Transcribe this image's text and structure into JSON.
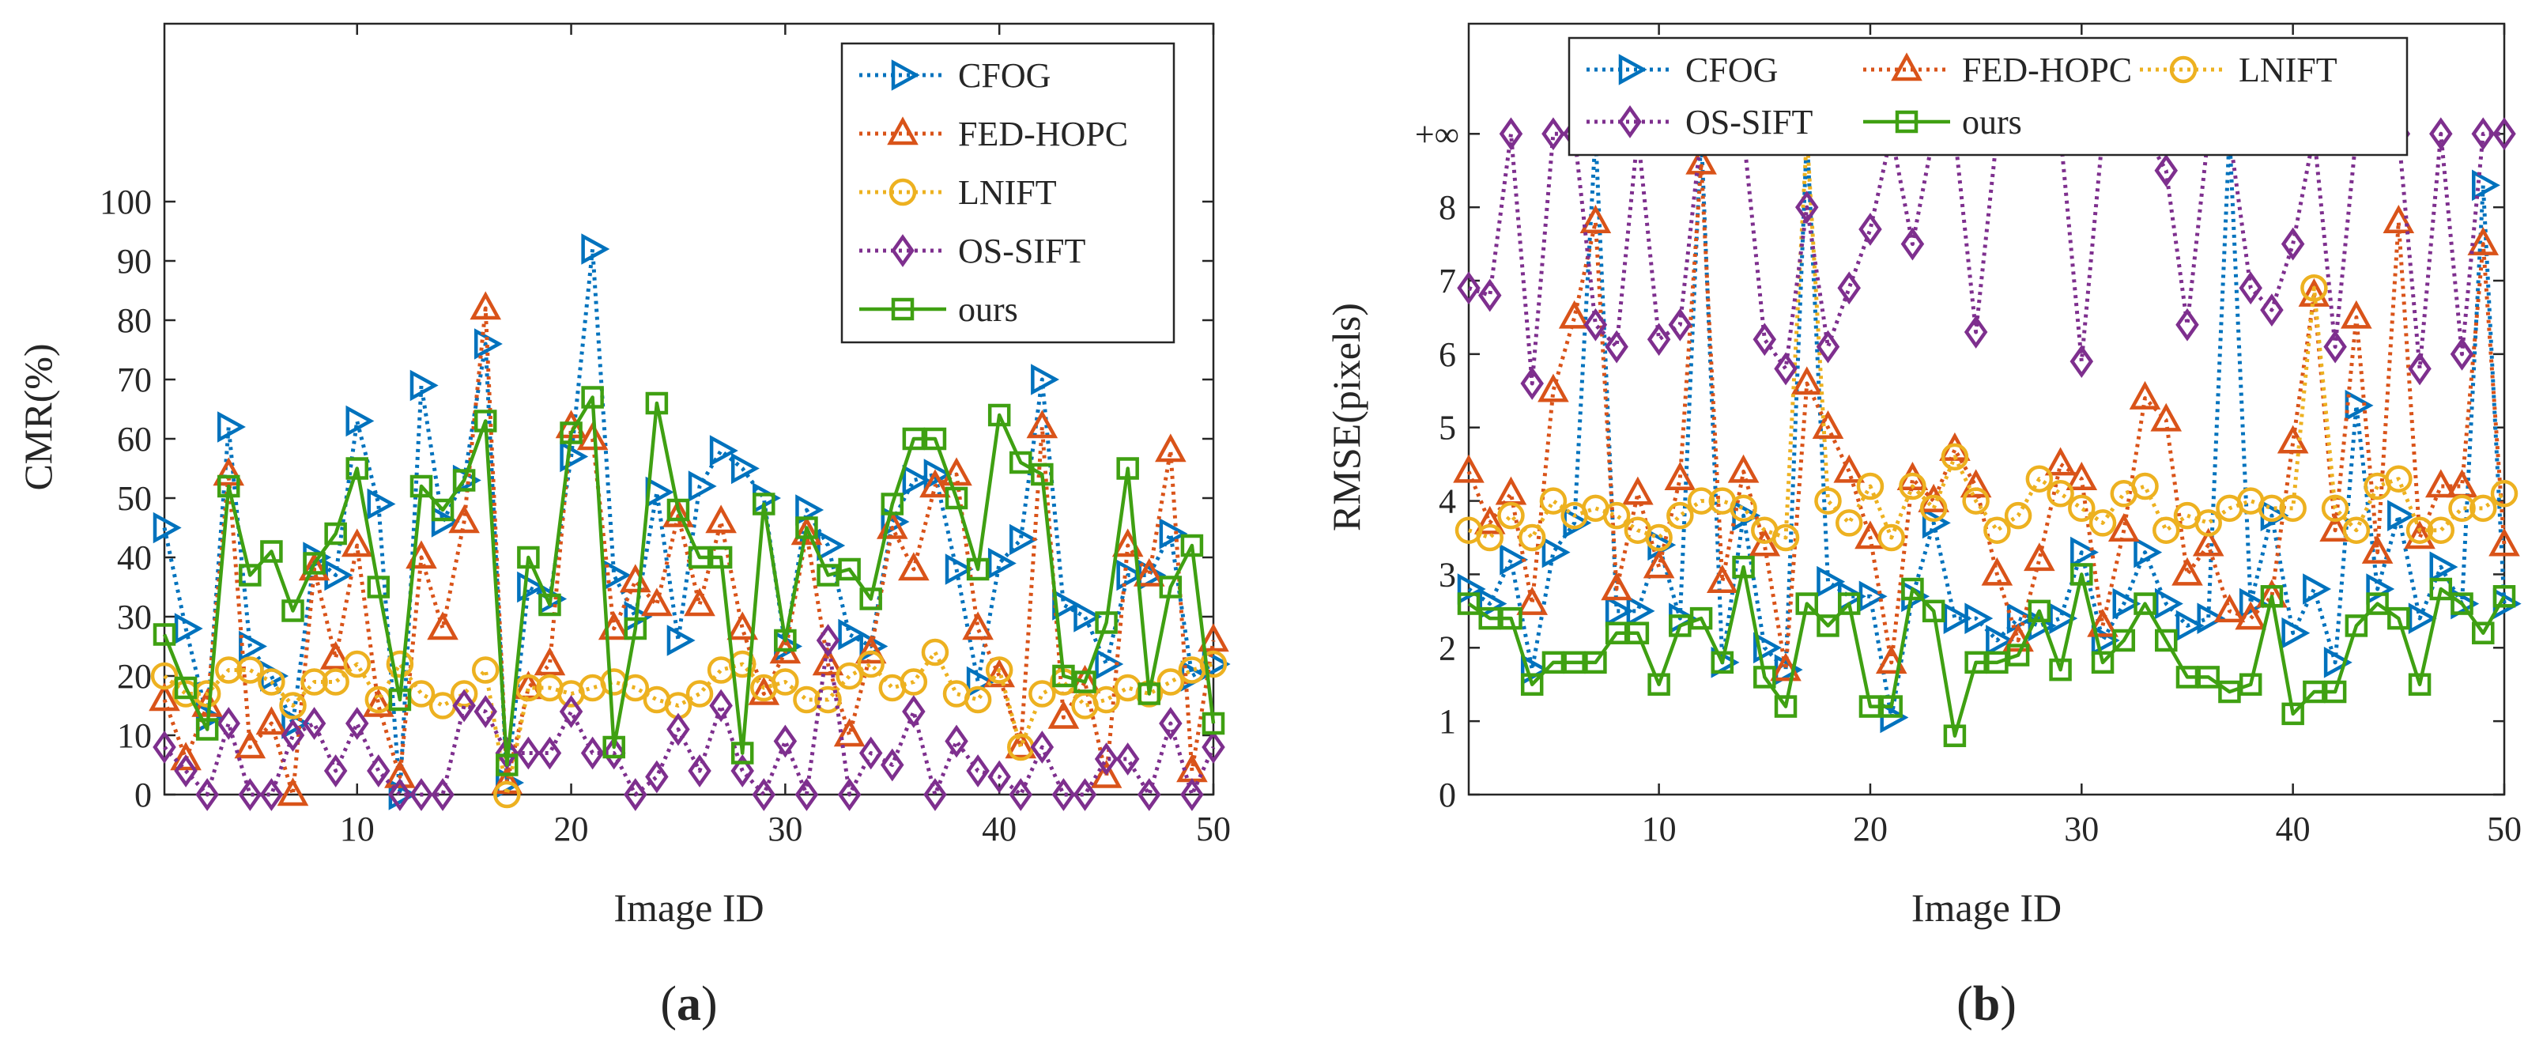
{
  "colors": {
    "CFOG": "#0072BD",
    "FED-HOPC": "#D95319",
    "LNIFT": "#EDB120",
    "OS-SIFT": "#7E2F8E",
    "ours": "#3FA012"
  },
  "chart_data": [
    {
      "id": "a",
      "type": "line",
      "panel_label": [
        "(",
        "a",
        ")"
      ],
      "xlabel": "Image ID",
      "ylabel": "CMR(%)",
      "xlim": [
        1,
        50
      ],
      "ylim": [
        0,
        130
      ],
      "xticks": [
        10,
        20,
        30,
        40,
        50
      ],
      "yticks": [
        0,
        10,
        20,
        30,
        40,
        50,
        60,
        70,
        80,
        90,
        100
      ],
      "legend_position": "top-right",
      "legend_layout": "column",
      "x": [
        1,
        2,
        3,
        4,
        5,
        6,
        7,
        8,
        9,
        10,
        11,
        12,
        13,
        14,
        15,
        16,
        17,
        18,
        19,
        20,
        21,
        22,
        23,
        24,
        25,
        26,
        27,
        28,
        29,
        30,
        31,
        32,
        33,
        34,
        35,
        36,
        37,
        38,
        39,
        40,
        41,
        42,
        43,
        44,
        45,
        46,
        47,
        48,
        49,
        50
      ],
      "series": [
        {
          "name": "CFOG",
          "marker": "triangle-right",
          "style": "dotted",
          "values": [
            45,
            28,
            13,
            62,
            25,
            20,
            12,
            40,
            37,
            63,
            49,
            0,
            69,
            46,
            53,
            76,
            2,
            35,
            33,
            57,
            92,
            37,
            30,
            51,
            26,
            52,
            58,
            55,
            50,
            25,
            48,
            42,
            27,
            25,
            46,
            53,
            54,
            38,
            19,
            39,
            43,
            70,
            32,
            30,
            22,
            37,
            37,
            44,
            20,
            22
          ]
        },
        {
          "name": "FED-HOPC",
          "marker": "triangle-up",
          "style": "dotted",
          "values": [
            16,
            6,
            15,
            54,
            8,
            12,
            0,
            38,
            23,
            42,
            15,
            3,
            40,
            28,
            46,
            82,
            2,
            18,
            22,
            62,
            60,
            28,
            36,
            32,
            47,
            32,
            46,
            28,
            17,
            24,
            44,
            22,
            10,
            24,
            45,
            38,
            52,
            54,
            28,
            20,
            8,
            62,
            13,
            19,
            3,
            42,
            37,
            58,
            4,
            26
          ]
        },
        {
          "name": "LNIFT",
          "marker": "circle",
          "style": "dotted",
          "values": [
            20,
            17,
            17,
            21,
            21,
            19,
            15,
            19,
            19,
            22,
            16,
            22,
            17,
            15,
            17,
            21,
            0,
            18,
            18,
            17,
            18,
            19,
            18,
            16,
            15,
            17,
            21,
            22,
            18,
            19,
            16,
            16,
            20,
            22,
            18,
            19,
            24,
            17,
            16,
            21,
            8,
            17,
            19,
            15,
            16,
            18,
            17,
            19,
            21,
            22
          ]
        },
        {
          "name": "OS-SIFT",
          "marker": "diamond",
          "style": "dotted",
          "values": [
            8,
            4,
            0,
            12,
            0,
            0,
            10,
            12,
            4,
            12,
            4,
            0,
            0,
            0,
            15,
            14,
            7,
            7,
            7,
            14,
            7,
            7,
            0,
            3,
            11,
            4,
            15,
            4,
            0,
            9,
            0,
            26,
            0,
            7,
            5,
            14,
            0,
            9,
            4,
            3,
            0,
            8,
            0,
            0,
            6,
            6,
            0,
            12,
            0,
            8
          ]
        },
        {
          "name": "ours",
          "marker": "square",
          "style": "solid",
          "values": [
            27,
            18,
            11,
            52,
            37,
            41,
            31,
            39,
            44,
            55,
            35,
            16,
            52,
            48,
            53,
            63,
            5,
            40,
            32,
            61,
            67,
            8,
            28,
            66,
            48,
            40,
            40,
            7,
            49,
            26,
            45,
            37,
            38,
            33,
            49,
            60,
            60,
            50,
            38,
            64,
            56,
            54,
            20,
            19,
            29,
            55,
            17,
            35,
            42,
            12
          ]
        }
      ]
    },
    {
      "id": "b",
      "type": "line",
      "panel_label": [
        "(",
        "b",
        ")"
      ],
      "xlabel": "Image ID",
      "ylabel": "RMSE(pixels)",
      "xlim": [
        1,
        50
      ],
      "ylim": [
        0,
        10.5
      ],
      "xticks": [
        10,
        20,
        30,
        40,
        50
      ],
      "yticks": [
        0,
        1,
        2,
        3,
        4,
        5,
        6,
        7,
        8
      ],
      "infinity_label": "+∞",
      "infinity_value": 9,
      "legend_position": "top",
      "legend_layout": "3-column grid",
      "x": [
        1,
        2,
        3,
        4,
        5,
        6,
        7,
        8,
        9,
        10,
        11,
        12,
        13,
        14,
        15,
        16,
        17,
        18,
        19,
        20,
        21,
        22,
        23,
        24,
        25,
        26,
        27,
        28,
        29,
        30,
        31,
        32,
        33,
        34,
        35,
        36,
        37,
        38,
        39,
        40,
        41,
        42,
        43,
        44,
        45,
        46,
        47,
        48,
        49,
        50
      ],
      "series": [
        {
          "name": "CFOG",
          "marker": "triangle-right",
          "style": "dotted",
          "values": [
            2.8,
            2.6,
            3.2,
            1.7,
            3.3,
            3.7,
            9,
            2.5,
            2.5,
            3.4,
            2.4,
            9,
            1.8,
            3.8,
            2.0,
            1.7,
            9,
            2.9,
            2.7,
            2.7,
            1.05,
            2.7,
            3.7,
            2.4,
            2.4,
            2.1,
            2.4,
            2.3,
            2.4,
            3.3,
            2.1,
            2.6,
            3.3,
            2.6,
            2.3,
            2.4,
            9,
            2.6,
            3.8,
            2.2,
            2.8,
            1.8,
            5.3,
            2.8,
            3.8,
            2.4,
            3.1,
            2.6,
            8.3,
            2.6
          ]
        },
        {
          "name": "FED-HOPC",
          "marker": "triangle-up",
          "style": "dotted",
          "values": [
            4.4,
            3.7,
            4.1,
            2.6,
            5.5,
            6.5,
            7.8,
            2.8,
            4.1,
            3.1,
            4.3,
            8.6,
            2.9,
            4.4,
            3.4,
            1.7,
            5.6,
            5.0,
            4.4,
            3.5,
            1.8,
            4.3,
            4.0,
            4.7,
            4.2,
            3.0,
            2.1,
            3.2,
            4.5,
            4.3,
            2.3,
            3.6,
            5.4,
            5.1,
            3.0,
            3.4,
            2.5,
            2.4,
            2.7,
            4.8,
            6.8,
            3.6,
            6.5,
            3.3,
            7.8,
            3.5,
            4.2,
            4.2,
            7.5,
            3.4
          ]
        },
        {
          "name": "LNIFT",
          "marker": "circle",
          "style": "dotted",
          "values": [
            3.6,
            3.5,
            3.8,
            3.5,
            4.0,
            3.8,
            3.9,
            3.8,
            3.6,
            3.5,
            3.8,
            4.0,
            4.0,
            3.9,
            3.6,
            3.5,
            9,
            4.0,
            3.7,
            4.2,
            3.5,
            4.2,
            3.9,
            4.6,
            4.0,
            3.6,
            3.8,
            4.3,
            4.1,
            3.9,
            3.7,
            4.1,
            4.2,
            3.6,
            3.8,
            3.7,
            3.9,
            4.0,
            3.9,
            3.9,
            6.9,
            3.9,
            3.6,
            4.2,
            4.3,
            3.6,
            3.6,
            3.9,
            3.9,
            4.1
          ]
        },
        {
          "name": "OS-SIFT",
          "marker": "diamond",
          "style": "dotted",
          "values": [
            6.9,
            6.8,
            9,
            5.6,
            9,
            9,
            6.4,
            6.1,
            9,
            6.2,
            6.4,
            9,
            9,
            9,
            6.2,
            5.8,
            8.0,
            6.1,
            6.9,
            7.7,
            9,
            7.5,
            9,
            9,
            6.3,
            9,
            9,
            9,
            9,
            5.9,
            9,
            9,
            9,
            8.5,
            6.4,
            9,
            9,
            6.9,
            6.6,
            7.5,
            9,
            6.1,
            9,
            9,
            9,
            5.8,
            9,
            6.0,
            9,
            9
          ]
        },
        {
          "name": "ours",
          "marker": "square",
          "style": "solid",
          "values": [
            2.6,
            2.4,
            2.4,
            1.5,
            1.8,
            1.8,
            1.8,
            2.2,
            2.2,
            1.5,
            2.3,
            2.4,
            1.8,
            3.1,
            1.6,
            1.2,
            2.6,
            2.3,
            2.6,
            1.2,
            1.2,
            2.8,
            2.5,
            0.8,
            1.8,
            1.8,
            1.9,
            2.5,
            1.7,
            3.0,
            1.8,
            2.1,
            2.6,
            2.1,
            1.6,
            1.6,
            1.4,
            1.5,
            2.7,
            1.1,
            1.4,
            1.4,
            2.3,
            2.6,
            2.4,
            1.5,
            2.8,
            2.6,
            2.2,
            2.7
          ]
        }
      ]
    }
  ]
}
